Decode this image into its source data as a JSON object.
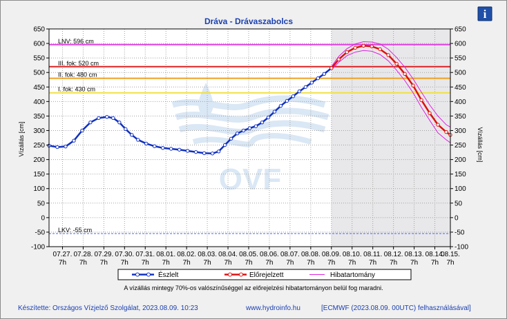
{
  "chart_data": {
    "type": "line",
    "title": "Dráva - Drávaszabolcs",
    "ylabel_left": "Vízállás [cm]",
    "ylabel_right": "Vízállás [cm]",
    "ylim": [
      -100,
      650
    ],
    "yticks": [
      -100,
      -50,
      0,
      50,
      100,
      150,
      200,
      250,
      300,
      350,
      400,
      450,
      500,
      550,
      600,
      650
    ],
    "x_range": [
      0,
      19.4
    ],
    "x_ticks": [
      {
        "x": 0.65,
        "date": "07.27.",
        "hour": "7h"
      },
      {
        "x": 1.65,
        "date": "07.28.",
        "hour": "7h"
      },
      {
        "x": 2.65,
        "date": "07.29.",
        "hour": "7h"
      },
      {
        "x": 3.65,
        "date": "07.30.",
        "hour": "7h"
      },
      {
        "x": 4.65,
        "date": "07.31.",
        "hour": "7h"
      },
      {
        "x": 5.65,
        "date": "08.01.",
        "hour": "7h"
      },
      {
        "x": 6.65,
        "date": "08.02.",
        "hour": "7h"
      },
      {
        "x": 7.65,
        "date": "08.03.",
        "hour": "7h"
      },
      {
        "x": 8.65,
        "date": "08.04.",
        "hour": "7h"
      },
      {
        "x": 9.65,
        "date": "08.05.",
        "hour": "7h"
      },
      {
        "x": 10.65,
        "date": "08.06.",
        "hour": "7h"
      },
      {
        "x": 11.65,
        "date": "08.07.",
        "hour": "7h"
      },
      {
        "x": 12.65,
        "date": "08.08.",
        "hour": "7h"
      },
      {
        "x": 13.65,
        "date": "08.09.",
        "hour": "7h"
      },
      {
        "x": 14.65,
        "date": "08.10.",
        "hour": "7h"
      },
      {
        "x": 15.65,
        "date": "08.11.",
        "hour": "7h"
      },
      {
        "x": 16.65,
        "date": "08.12.",
        "hour": "7h"
      },
      {
        "x": 17.65,
        "date": "08.13.",
        "hour": "7h"
      },
      {
        "x": 18.65,
        "date": "08.14.",
        "hour": "7h"
      },
      {
        "x": 19.4,
        "date": "08.15.",
        "hour": "7h"
      }
    ],
    "forecast_start_x": 13.65,
    "levels": [
      {
        "name": "LNV: 596 cm",
        "value": 596,
        "color": "#e040e0"
      },
      {
        "name": "III. fok: 520 cm",
        "value": 520,
        "color": "#dd2020"
      },
      {
        "name": "II. fok: 480 cm",
        "value": 480,
        "color": "#f0a020"
      },
      {
        "name": "I. fok: 430 cm",
        "value": 430,
        "color": "#f0e040"
      },
      {
        "name": "LKV: -55 cm",
        "value": -55,
        "color": "#4060ff"
      }
    ],
    "series": [
      {
        "name": "Észlelt",
        "color": "#1030c0",
        "points": [
          [
            0,
            248
          ],
          [
            0.4,
            243
          ],
          [
            0.8,
            245
          ],
          [
            1.2,
            265
          ],
          [
            1.6,
            300
          ],
          [
            2.0,
            328
          ],
          [
            2.4,
            343
          ],
          [
            2.8,
            347
          ],
          [
            3.1,
            343
          ],
          [
            3.4,
            328
          ],
          [
            3.7,
            305
          ],
          [
            4.0,
            285
          ],
          [
            4.3,
            268
          ],
          [
            4.7,
            255
          ],
          [
            5.1,
            246
          ],
          [
            5.5,
            240
          ],
          [
            5.9,
            237
          ],
          [
            6.3,
            234
          ],
          [
            6.7,
            230
          ],
          [
            7.1,
            226
          ],
          [
            7.5,
            222
          ],
          [
            7.9,
            221
          ],
          [
            8.2,
            228
          ],
          [
            8.5,
            250
          ],
          [
            8.8,
            272
          ],
          [
            9.1,
            290
          ],
          [
            9.4,
            300
          ],
          [
            9.7,
            308
          ],
          [
            10.0,
            315
          ],
          [
            10.3,
            328
          ],
          [
            10.6,
            345
          ],
          [
            10.9,
            365
          ],
          [
            11.2,
            385
          ],
          [
            11.5,
            402
          ],
          [
            11.8,
            418
          ],
          [
            12.1,
            435
          ],
          [
            12.4,
            450
          ],
          [
            12.7,
            465
          ],
          [
            13.0,
            480
          ],
          [
            13.3,
            495
          ],
          [
            13.65,
            515
          ]
        ]
      },
      {
        "name": "Előrejelzett",
        "color": "#dd1010",
        "points": [
          [
            13.65,
            515
          ],
          [
            14.0,
            545
          ],
          [
            14.4,
            570
          ],
          [
            14.8,
            585
          ],
          [
            15.2,
            592
          ],
          [
            15.6,
            590
          ],
          [
            16.0,
            580
          ],
          [
            16.4,
            560
          ],
          [
            16.8,
            530
          ],
          [
            17.2,
            495
          ],
          [
            17.6,
            455
          ],
          [
            18.0,
            405
          ],
          [
            18.4,
            360
          ],
          [
            18.8,
            320
          ],
          [
            19.2,
            295
          ],
          [
            19.4,
            285
          ]
        ]
      },
      {
        "name": "Hibatartomány",
        "color": "#e020e0",
        "upper": [
          [
            13.65,
            520
          ],
          [
            14.0,
            555
          ],
          [
            14.4,
            582
          ],
          [
            14.8,
            598
          ],
          [
            15.2,
            606
          ],
          [
            15.6,
            605
          ],
          [
            16.0,
            598
          ],
          [
            16.4,
            580
          ],
          [
            16.8,
            552
          ],
          [
            17.2,
            518
          ],
          [
            17.6,
            478
          ],
          [
            18.0,
            432
          ],
          [
            18.4,
            388
          ],
          [
            18.8,
            350
          ],
          [
            19.2,
            320
          ],
          [
            19.4,
            312
          ]
        ],
        "lower": [
          [
            13.65,
            510
          ],
          [
            14.0,
            535
          ],
          [
            14.4,
            558
          ],
          [
            14.8,
            570
          ],
          [
            15.2,
            576
          ],
          [
            15.6,
            573
          ],
          [
            16.0,
            562
          ],
          [
            16.4,
            540
          ],
          [
            16.8,
            508
          ],
          [
            17.2,
            472
          ],
          [
            17.6,
            430
          ],
          [
            18.0,
            380
          ],
          [
            18.4,
            335
          ],
          [
            18.8,
            292
          ],
          [
            19.2,
            268
          ],
          [
            19.4,
            258
          ]
        ]
      }
    ]
  },
  "legend": {
    "observed": "Észlelt",
    "forecast": "Előrejelzett",
    "range": "Hibatartomány"
  },
  "note": "A vízállás mintegy 70%-os valószínűséggel az előrejelzési hibatartományon belül fog maradni.",
  "watermark": "OVF",
  "footer": {
    "author": "Készítette: Országos Vízjelző Szolgálat, 2023.08.09. 10:23",
    "url": "www.hydroinfo.hu",
    "source": "[ECMWF (2023.08.09. 00UTC) felhasználásával]"
  },
  "info_button": "i"
}
